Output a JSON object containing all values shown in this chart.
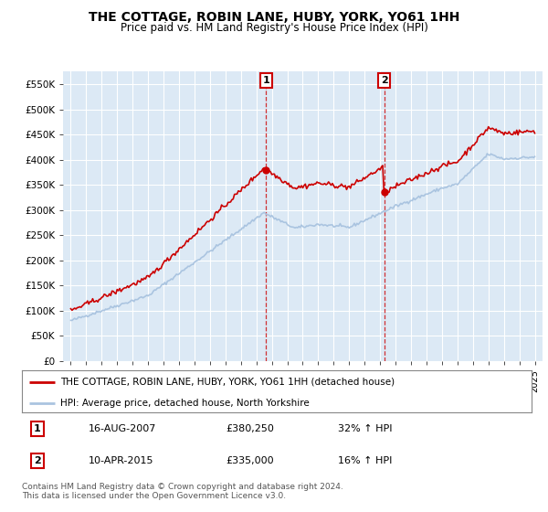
{
  "title": "THE COTTAGE, ROBIN LANE, HUBY, YORK, YO61 1HH",
  "subtitle": "Price paid vs. HM Land Registry's House Price Index (HPI)",
  "background_color": "#dce9f5",
  "ylim": [
    0,
    575000
  ],
  "yticks": [
    0,
    50000,
    100000,
    150000,
    200000,
    250000,
    300000,
    350000,
    400000,
    450000,
    500000,
    550000
  ],
  "ytick_labels": [
    "£0",
    "£50K",
    "£100K",
    "£150K",
    "£200K",
    "£250K",
    "£300K",
    "£350K",
    "£400K",
    "£450K",
    "£500K",
    "£550K"
  ],
  "hpi_color": "#aac4e0",
  "price_color": "#cc0000",
  "sale1_year": 2007.625,
  "sale1_price": 380250,
  "sale2_year": 2015.27,
  "sale2_price": 335000,
  "legend_line1": "THE COTTAGE, ROBIN LANE, HUBY, YORK, YO61 1HH (detached house)",
  "legend_line2": "HPI: Average price, detached house, North Yorkshire",
  "footer": "Contains HM Land Registry data © Crown copyright and database right 2024.\nThis data is licensed under the Open Government Licence v3.0.",
  "table_row1": [
    "1",
    "16-AUG-2007",
    "£380,250",
    "32% ↑ HPI"
  ],
  "table_row2": [
    "2",
    "10-APR-2015",
    "£335,000",
    "16% ↑ HPI"
  ]
}
